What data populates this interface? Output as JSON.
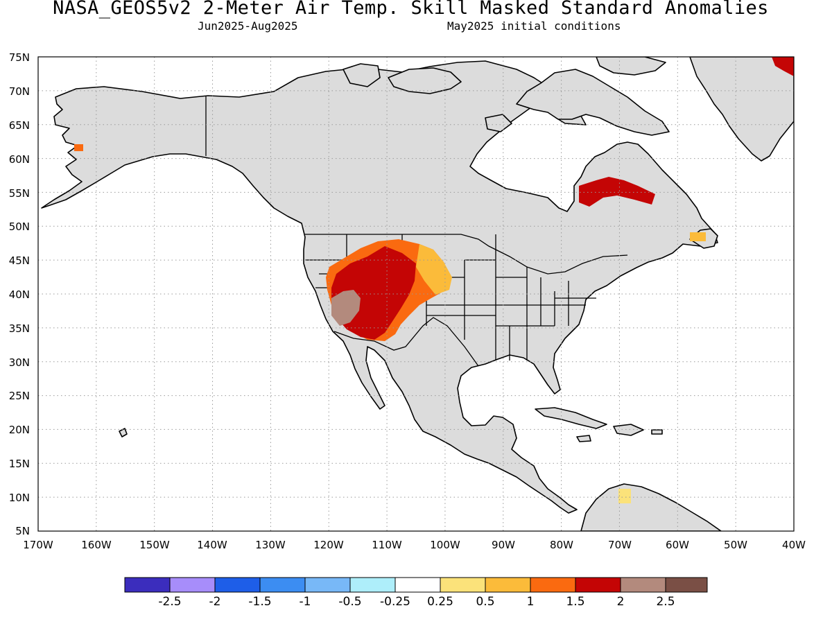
{
  "title": "NASA_GEOS5v2 2-Meter Air Temp. Skill Masked Standard Anomalies",
  "season": "Jun2025-Aug2025",
  "init": "May2025 initial conditions",
  "axes": {
    "lat_labels": [
      "75N",
      "70N",
      "65N",
      "60N",
      "55N",
      "50N",
      "45N",
      "40N",
      "35N",
      "30N",
      "25N",
      "20N",
      "15N",
      "10N",
      "5N"
    ],
    "lon_labels": [
      "170W",
      "160W",
      "150W",
      "140W",
      "130W",
      "120W",
      "110W",
      "100W",
      "90W",
      "80W",
      "70W",
      "60W",
      "50W",
      "40W"
    ]
  },
  "colors": {
    "land_masked": "#dcdcdc",
    "coast": "#000000",
    "grid": "#999999"
  },
  "colorbar": {
    "colors": [
      "#3b2dbd",
      "#a78dfa",
      "#1e5ee8",
      "#3c8df2",
      "#78b8f7",
      "#aeeefa",
      "#ffffff",
      "#fbe27a",
      "#fbbb3a",
      "#fa6a10",
      "#c40505",
      "#b38a7d",
      "#7a4f45"
    ],
    "labels": [
      "-2.5",
      "-2",
      "-1.5",
      "-1",
      "-0.5",
      "-0.25",
      "0.25",
      "0.5",
      "1",
      "1.5",
      "2",
      "2.5"
    ]
  }
}
